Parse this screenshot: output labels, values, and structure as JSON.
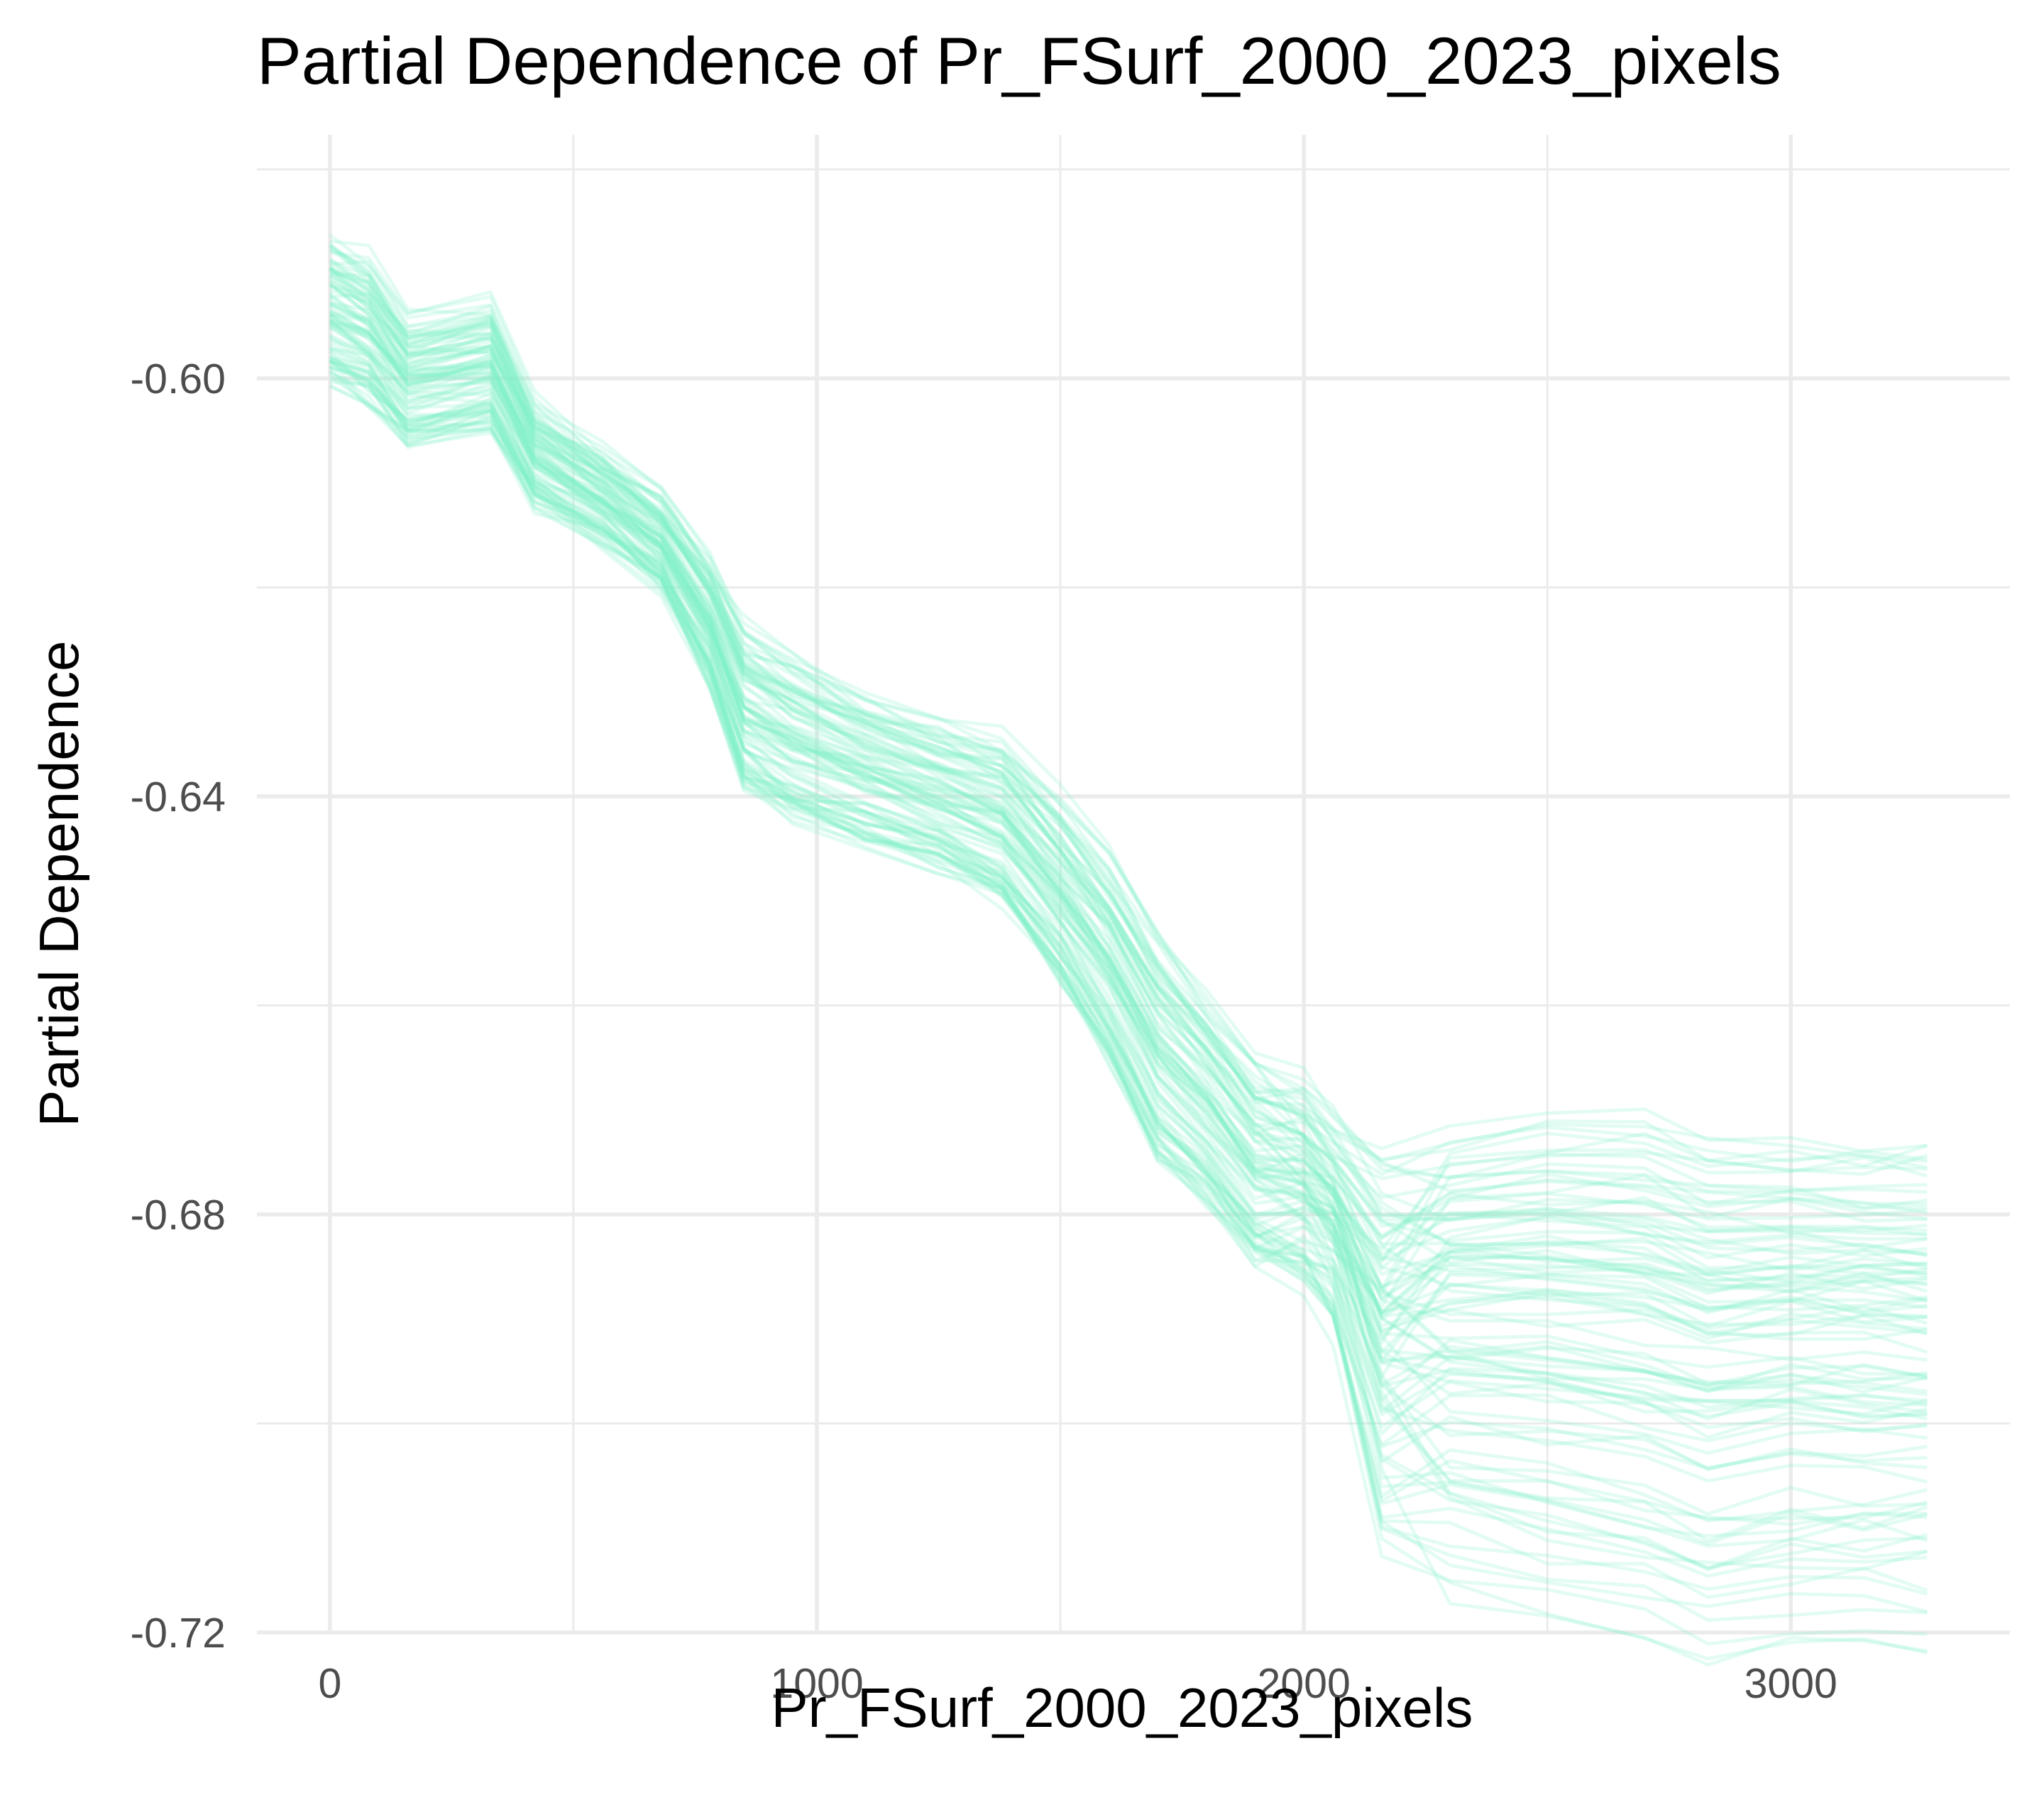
{
  "chart_data": {
    "type": "line",
    "title": "Partial Dependence of Pr_FSurf_2000_2023_pixels",
    "xlabel": "Pr_FSurf_2000_2023_pixels",
    "ylabel": "Partial Dependence",
    "xlim": [
      -150,
      3450
    ],
    "ylim": [
      -0.72,
      -0.5767
    ],
    "x_ticks": [
      0,
      1000,
      2000,
      3000
    ],
    "x_tick_labels": [
      "0",
      "1000",
      "2000",
      "3000"
    ],
    "y_ticks": [
      -0.6,
      -0.64,
      -0.68,
      -0.72
    ],
    "y_tick_labels": [
      "-0.60",
      "-0.64",
      "-0.68",
      "-0.72"
    ],
    "grid": true,
    "legend": "none",
    "line_color": "#7ff0c8",
    "series_count": 100,
    "x": [
      0,
      80,
      160,
      330,
      420,
      560,
      680,
      780,
      850,
      950,
      1100,
      1250,
      1380,
      1500,
      1600,
      1700,
      1800,
      1900,
      2000,
      2060,
      2160,
      2300,
      2500,
      2700,
      2830,
      3000,
      3150,
      3280
    ],
    "center_curve": [
      -0.593,
      -0.595,
      -0.6,
      -0.5985,
      -0.607,
      -0.611,
      -0.6155,
      -0.623,
      -0.631,
      -0.634,
      -0.637,
      -0.6395,
      -0.642,
      -0.6485,
      -0.655,
      -0.6635,
      -0.6685,
      -0.6745,
      -0.6765,
      -0.68,
      -0.6915,
      -0.692,
      -0.6925,
      -0.6935,
      -0.6955,
      -0.695,
      -0.695,
      -0.695
    ],
    "band_spread": [
      0.007,
      0.007,
      0.006,
      0.006,
      0.005,
      0.0045,
      0.0045,
      0.006,
      0.008,
      0.008,
      0.007,
      0.007,
      0.008,
      0.009,
      0.01,
      0.011,
      0.01,
      0.01,
      0.011,
      0.012,
      0.022,
      0.022,
      0.024,
      0.025,
      0.025,
      0.024,
      0.024,
      0.024
    ]
  }
}
